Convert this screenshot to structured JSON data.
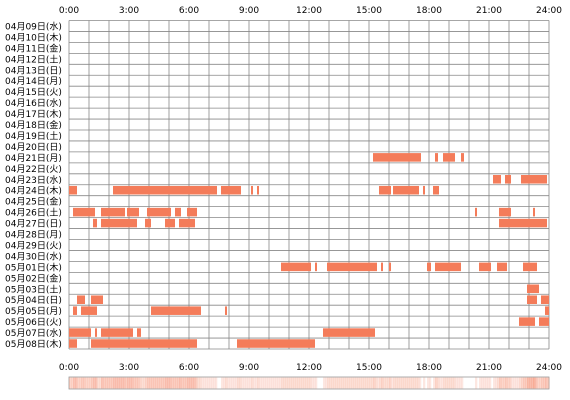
{
  "chart_data": {
    "type": "heatmap",
    "x_unit": "hours",
    "x_ticks": [
      "0:00",
      "3:00",
      "6:00",
      "9:00",
      "12:00",
      "15:00",
      "18:00",
      "21:00",
      "24:00"
    ],
    "rows": [
      {
        "label": "04月09日(水)",
        "segments": []
      },
      {
        "label": "04月10日(木)",
        "segments": []
      },
      {
        "label": "04月11日(金)",
        "segments": []
      },
      {
        "label": "04月12日(土)",
        "segments": []
      },
      {
        "label": "04月13日(日)",
        "segments": []
      },
      {
        "label": "04月14日(月)",
        "segments": []
      },
      {
        "label": "04月15日(火)",
        "segments": []
      },
      {
        "label": "04月16日(水)",
        "segments": []
      },
      {
        "label": "04月17日(木)",
        "segments": []
      },
      {
        "label": "04月18日(金)",
        "segments": []
      },
      {
        "label": "04月19日(土)",
        "segments": []
      },
      {
        "label": "04月20日(日)",
        "segments": []
      },
      {
        "label": "04月21日(月)",
        "segments": [
          [
            15.2,
            17.6
          ],
          [
            18.3,
            18.45
          ],
          [
            18.7,
            19.3
          ],
          [
            19.6,
            19.75
          ]
        ]
      },
      {
        "label": "04月22日(火)",
        "segments": []
      },
      {
        "label": "04月23日(水)",
        "segments": [
          [
            21.2,
            21.6
          ],
          [
            21.8,
            22.1
          ],
          [
            22.6,
            23.9
          ],
          [
            24.0,
            24.3
          ]
        ]
      },
      {
        "label": "04月24日(木)",
        "segments": [
          [
            0.0,
            0.4
          ],
          [
            2.2,
            7.4
          ],
          [
            7.6,
            8.6
          ],
          [
            9.1,
            9.2
          ],
          [
            9.4,
            9.5
          ],
          [
            15.5,
            16.1
          ],
          [
            16.2,
            17.5
          ],
          [
            17.7,
            17.8
          ],
          [
            18.2,
            18.5
          ]
        ]
      },
      {
        "label": "04月25日(金)",
        "segments": []
      },
      {
        "label": "04月26日(土)",
        "segments": [
          [
            0.2,
            1.3
          ],
          [
            1.6,
            2.8
          ],
          [
            2.9,
            3.5
          ],
          [
            3.9,
            5.1
          ],
          [
            5.3,
            5.6
          ],
          [
            5.9,
            6.4
          ],
          [
            20.3,
            20.4
          ],
          [
            21.5,
            22.1
          ],
          [
            23.2,
            23.3
          ]
        ]
      },
      {
        "label": "04月27日(日)",
        "segments": [
          [
            1.2,
            1.4
          ],
          [
            1.6,
            3.4
          ],
          [
            3.8,
            4.1
          ],
          [
            4.8,
            5.3
          ],
          [
            5.5,
            6.3
          ],
          [
            21.5,
            23.9
          ]
        ]
      },
      {
        "label": "04月28日(月)",
        "segments": []
      },
      {
        "label": "04月29日(火)",
        "segments": []
      },
      {
        "label": "04月30日(水)",
        "segments": []
      },
      {
        "label": "05月01日(木)",
        "segments": [
          [
            10.6,
            12.1
          ],
          [
            12.3,
            12.4
          ],
          [
            12.9,
            15.4
          ],
          [
            15.6,
            15.7
          ],
          [
            16.0,
            16.1
          ],
          [
            17.9,
            18.1
          ],
          [
            18.3,
            19.6
          ],
          [
            20.5,
            21.1
          ],
          [
            21.4,
            21.9
          ],
          [
            22.7,
            23.4
          ]
        ]
      },
      {
        "label": "05月02日(金)",
        "segments": []
      },
      {
        "label": "05月03日(土)",
        "segments": [
          [
            22.9,
            23.5
          ]
        ]
      },
      {
        "label": "05月04日(日)",
        "segments": [
          [
            0.4,
            0.8
          ],
          [
            1.1,
            1.7
          ],
          [
            22.9,
            23.4
          ],
          [
            23.6,
            24.0
          ]
        ]
      },
      {
        "label": "05月05日(月)",
        "segments": [
          [
            0.2,
            0.4
          ],
          [
            0.6,
            1.4
          ],
          [
            4.1,
            6.6
          ],
          [
            7.8,
            7.9
          ],
          [
            23.8,
            24.0
          ]
        ]
      },
      {
        "label": "05月06日(火)",
        "segments": [
          [
            22.5,
            23.3
          ],
          [
            23.5,
            24.0
          ]
        ]
      },
      {
        "label": "05月07日(水)",
        "segments": [
          [
            0.0,
            1.1
          ],
          [
            1.3,
            1.4
          ],
          [
            1.6,
            3.2
          ],
          [
            3.4,
            3.6
          ],
          [
            12.7,
            15.3
          ]
        ]
      },
      {
        "label": "05月08日(木)",
        "segments": [
          [
            0.0,
            0.4
          ],
          [
            1.1,
            6.4
          ],
          [
            8.4,
            12.3
          ]
        ]
      }
    ],
    "summary_strip": "aggregate activity per time of day across all rows",
    "colors": {
      "active": "#f47c5a",
      "grid": "#888888",
      "background": "#ffffff"
    }
  }
}
